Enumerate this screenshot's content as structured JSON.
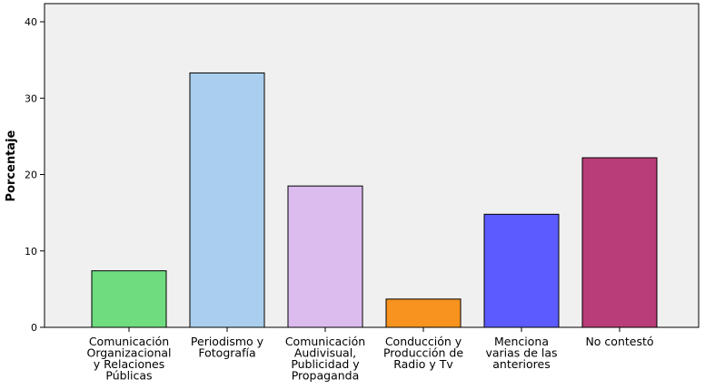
{
  "chart_data": {
    "type": "bar",
    "title": "",
    "xlabel": "",
    "ylabel": "Porcentaje",
    "ylim": [
      0,
      40
    ],
    "yticks": [
      0,
      10,
      20,
      30,
      40
    ],
    "grid": false,
    "categories": [
      [
        "Comunicación",
        "Organizacional",
        "y Relaciones",
        "Públicas"
      ],
      [
        "Periodismo y",
        "Fotografía"
      ],
      [
        "Comunicación",
        "Audivisual,",
        "Publicidad y",
        "Propaganda"
      ],
      [
        "Conducción y",
        "Producción de",
        "Radio y Tv"
      ],
      [
        "Menciona",
        "varias de las",
        "anteriores"
      ],
      [
        "No contestó"
      ]
    ],
    "values": [
      7.4,
      33.3,
      18.5,
      3.7,
      14.8,
      22.2
    ],
    "colors": [
      "#6fdd7f",
      "#aacfee",
      "#dcbbef",
      "#f7931e",
      "#5b5bff",
      "#b93d78"
    ],
    "plot_background": "#f0f0f0"
  }
}
